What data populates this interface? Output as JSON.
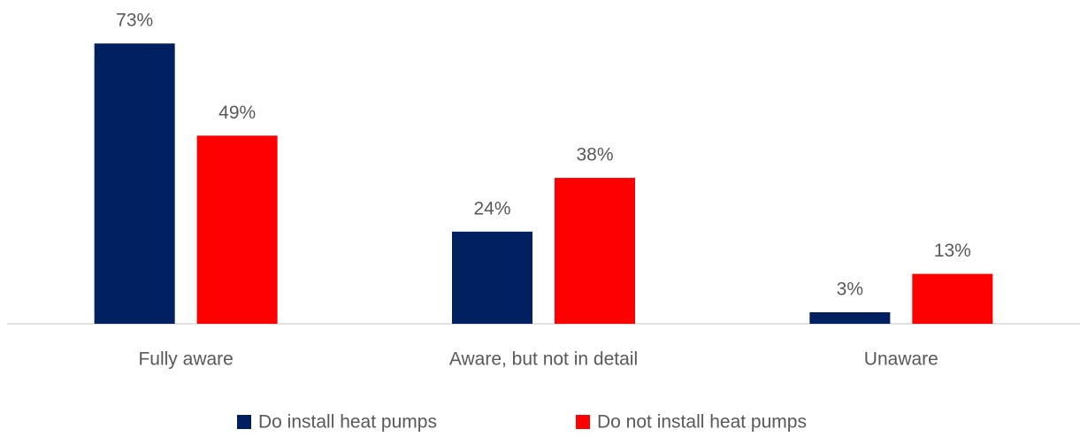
{
  "chart_data": {
    "type": "bar",
    "categories": [
      "Fully aware",
      "Aware, but not in detail",
      "Unaware"
    ],
    "series": [
      {
        "name": "Do install heat pumps",
        "color": "#002060",
        "values": [
          73,
          24,
          3
        ],
        "value_labels": [
          "73%",
          "24%",
          "3%"
        ]
      },
      {
        "name": "Do not install heat pumps",
        "color": "#ff0000",
        "values": [
          49,
          38,
          13
        ],
        "value_labels": [
          "49%",
          "38%",
          "13%"
        ]
      }
    ]
  }
}
